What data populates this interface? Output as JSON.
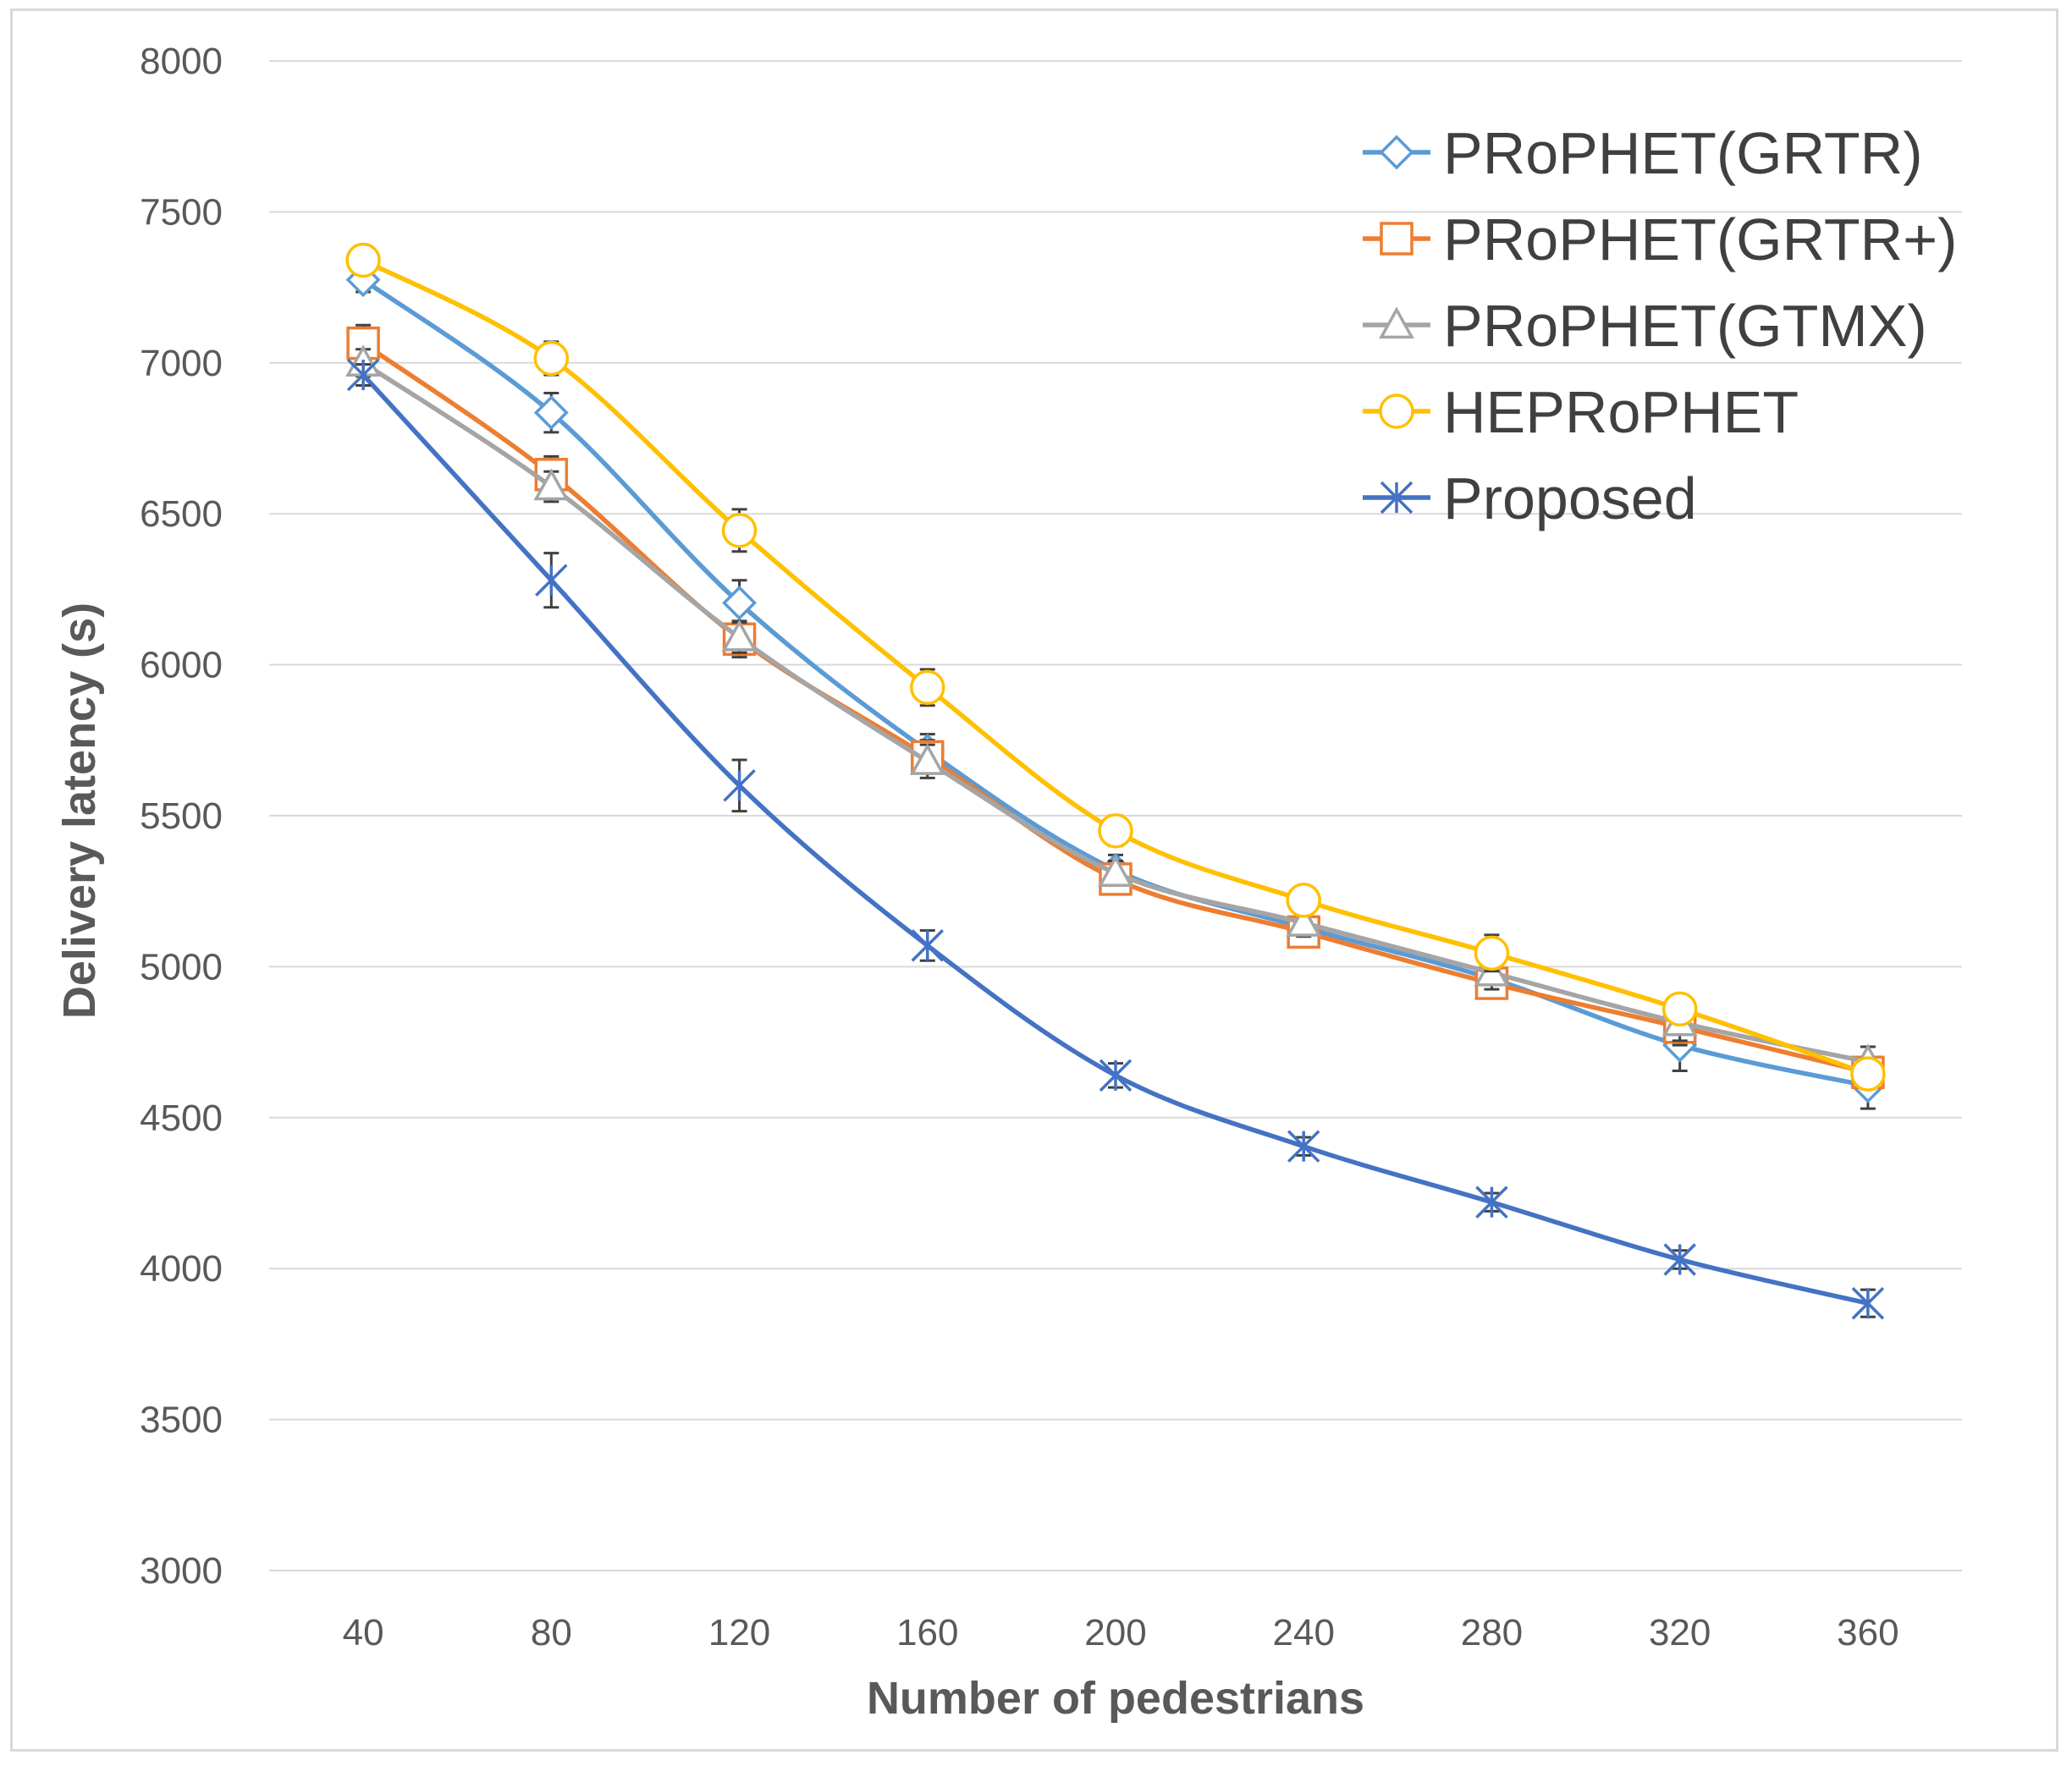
{
  "chart_data": {
    "type": "line",
    "title": "",
    "xlabel": "Number of pedestrians",
    "ylabel": "Delivery latency (s)",
    "categories": [
      "40",
      "80",
      "120",
      "160",
      "200",
      "240",
      "280",
      "320",
      "360"
    ],
    "x": [
      40,
      80,
      120,
      160,
      200,
      240,
      280,
      320,
      360
    ],
    "ylim": [
      3000,
      8000
    ],
    "yticks": [
      "3000",
      "3500",
      "4000",
      "4500",
      "5000",
      "5500",
      "6000",
      "6500",
      "7000",
      "7500",
      "8000"
    ],
    "grid": "horizontal",
    "legend_position": "top-right",
    "series": [
      {
        "name": "PRoPHET(GRTR)",
        "color": "#5b9bd5",
        "marker": "diamond",
        "values": [
          7275,
          6835,
          6205,
          5715,
          5320,
          5130,
          4960,
          4740,
          4605
        ],
        "errors": [
          40,
          65,
          75,
          55,
          50,
          50,
          45,
          85,
          75
        ]
      },
      {
        "name": "PRoPHET(GRTR+)",
        "color": "#ed7d31",
        "marker": "square",
        "values": [
          7065,
          6630,
          6085,
          5695,
          5290,
          5115,
          4945,
          4800,
          4650
        ],
        "errors": [
          60,
          60,
          60,
          55,
          40,
          45,
          40,
          60,
          50
        ]
      },
      {
        "name": "PRoPHET(GTMX)",
        "color": "#a5a5a5",
        "marker": "triangle",
        "values": [
          7000,
          6590,
          6090,
          5680,
          5310,
          5145,
          4980,
          4815,
          4685
        ],
        "errors": [
          45,
          50,
          50,
          55,
          40,
          45,
          55,
          60,
          50
        ]
      },
      {
        "name": "HEPRoPHET",
        "color": "#ffc000",
        "marker": "circle",
        "values": [
          7340,
          7015,
          6445,
          5925,
          5450,
          5220,
          5045,
          4860,
          4645
        ],
        "errors": [
          40,
          55,
          70,
          60,
          50,
          45,
          60,
          45,
          50
        ]
      },
      {
        "name": "Proposed",
        "color": "#4472c4",
        "marker": "star",
        "values": [
          6960,
          6280,
          5600,
          5070,
          4640,
          4405,
          4220,
          4030,
          3885
        ],
        "errors": [
          35,
          90,
          85,
          50,
          40,
          30,
          30,
          30,
          45
        ]
      }
    ]
  }
}
